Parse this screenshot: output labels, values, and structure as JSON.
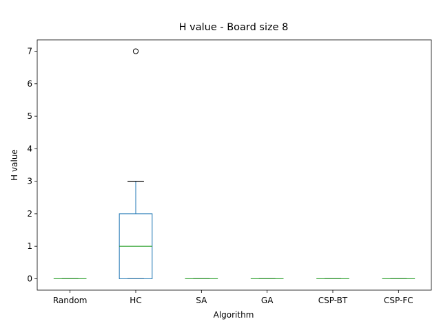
{
  "chart_data": {
    "type": "box",
    "title": "H value - Board size 8",
    "xlabel": "Algorithm",
    "ylabel": "H value",
    "ylim": [
      -0.35,
      7.35
    ],
    "yticks": [
      0,
      1,
      2,
      3,
      4,
      5,
      6,
      7
    ],
    "grid": false,
    "categories": [
      "Random",
      "HC",
      "SA",
      "GA",
      "CSP-BT",
      "CSP-FC"
    ],
    "boxes": [
      {
        "whisker_low": 0,
        "q1": 0,
        "median": 0,
        "q3": 0,
        "whisker_high": 0,
        "outliers": []
      },
      {
        "whisker_low": 0,
        "q1": 0,
        "median": 1,
        "q3": 2,
        "whisker_high": 3,
        "outliers": [
          7
        ]
      },
      {
        "whisker_low": 0,
        "q1": 0,
        "median": 0,
        "q3": 0,
        "whisker_high": 0,
        "outliers": []
      },
      {
        "whisker_low": 0,
        "q1": 0,
        "median": 0,
        "q3": 0,
        "whisker_high": 0,
        "outliers": []
      },
      {
        "whisker_low": 0,
        "q1": 0,
        "median": 0,
        "q3": 0,
        "whisker_high": 0,
        "outliers": []
      },
      {
        "whisker_low": 0,
        "q1": 0,
        "median": 0,
        "q3": 0,
        "whisker_high": 0,
        "outliers": []
      }
    ],
    "colors": {
      "box": "#1f77b4",
      "median": "#2ca02c",
      "whisker": "#000000",
      "outlier": "#000000"
    }
  }
}
